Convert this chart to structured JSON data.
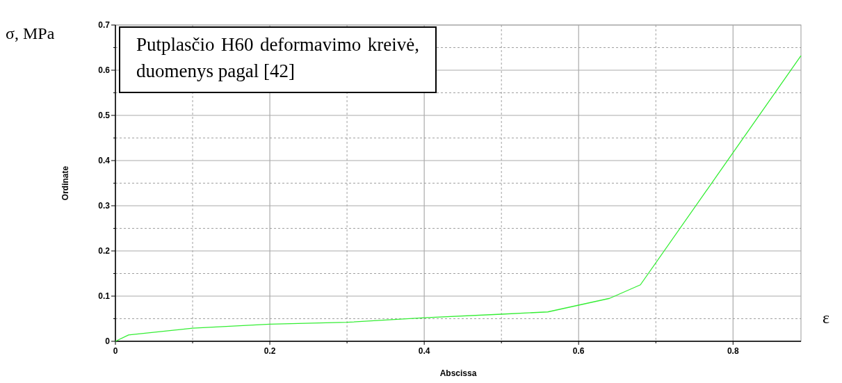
{
  "chart_data": {
    "type": "line",
    "xlabel": "Abscissa",
    "ylabel": "Ordinate",
    "annotations": [
      "Putplasčio H60 deformavimo kreivė, duomenys pagal [42]",
      "σ, MPa",
      "ε"
    ],
    "x": [
      0,
      0.017,
      0.1,
      0.2,
      0.3,
      0.4,
      0.5,
      0.56,
      0.64,
      0.68,
      0.888
    ],
    "series": [
      {
        "color": "#33ee33",
        "values": [
          0,
          0.014,
          0.029,
          0.038,
          0.042,
          0.052,
          0.06,
          0.065,
          0.095,
          0.125,
          0.632
        ]
      }
    ],
    "xlim": [
      0,
      0.888
    ],
    "ylim": [
      0,
      0.7
    ],
    "xticks": [
      0,
      {
        "value": 0.1,
        "label": null
      },
      0.2,
      {
        "value": 0.3,
        "label": null
      },
      0.4,
      {
        "value": 0.5,
        "label": null
      },
      0.6,
      {
        "value": 0.7,
        "label": null
      },
      0.8
    ],
    "yticks": [
      0,
      {
        "value": 0.05,
        "label": null
      },
      0.1,
      {
        "value": 0.15,
        "label": null
      },
      0.2,
      {
        "value": 0.25,
        "label": null
      },
      0.3,
      {
        "value": 0.35,
        "label": null
      },
      0.4,
      {
        "value": 0.45,
        "label": null
      },
      0.5,
      {
        "value": 0.55,
        "label": null
      },
      0.6,
      {
        "value": 0.65,
        "label": null
      },
      0.7
    ],
    "grid": true,
    "marker": "none",
    "line_style": "solid"
  }
}
